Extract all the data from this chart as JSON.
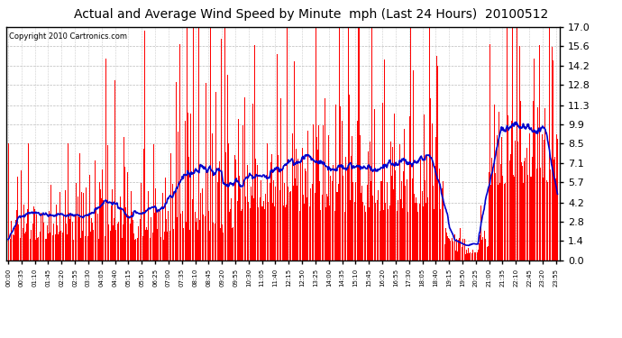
{
  "title": "Actual and Average Wind Speed by Minute  mph (Last 24 Hours)  20100512",
  "copyright": "Copyright 2010 Cartronics.com",
  "bar_color": "#ff0000",
  "line_color": "#0000cc",
  "background_color": "#ffffff",
  "plot_bg_color": "#ffffff",
  "grid_color": "#aaaaaa",
  "yticks": [
    0.0,
    1.4,
    2.8,
    4.2,
    5.7,
    7.1,
    8.5,
    9.9,
    11.3,
    12.8,
    14.2,
    15.6,
    17.0
  ],
  "ylim": [
    0.0,
    17.0
  ],
  "minutes_total": 1440,
  "seed": 42,
  "xtick_interval": 35,
  "title_fontsize": 10,
  "copyright_fontsize": 6,
  "ytick_fontsize": 8,
  "xtick_fontsize": 5
}
